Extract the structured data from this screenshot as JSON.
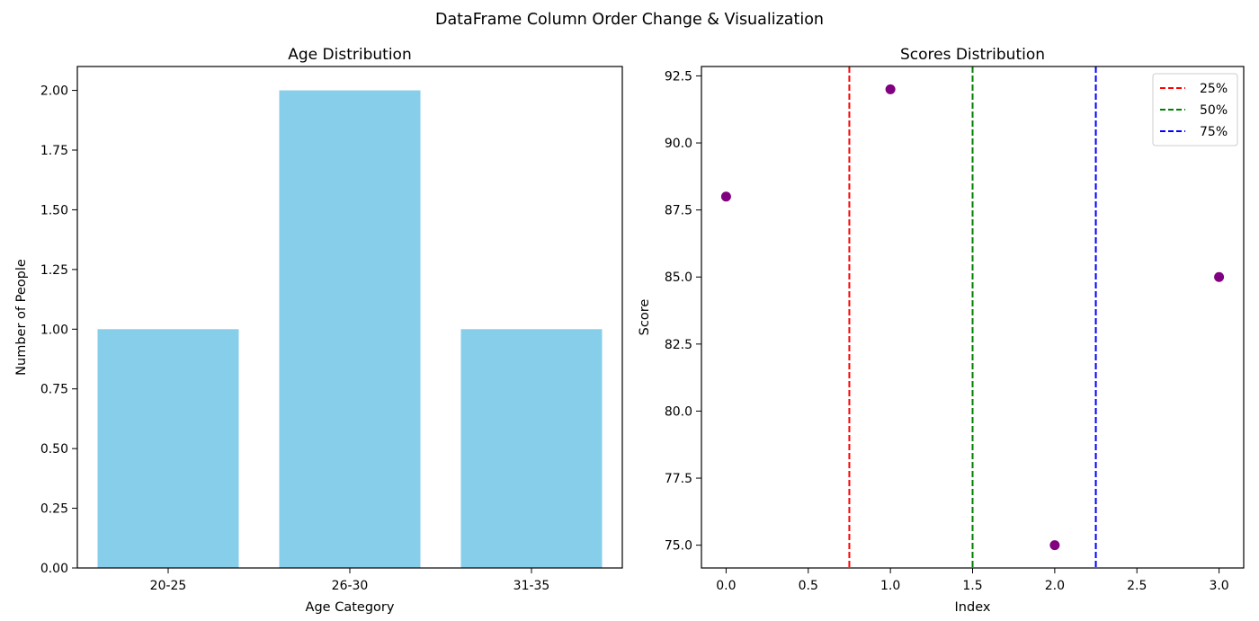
{
  "figure": {
    "suptitle": "DataFrame Column Order Change & Visualization"
  },
  "chart_data": [
    {
      "type": "bar",
      "title": "Age Distribution",
      "xlabel": "Age Category",
      "ylabel": "Number of People",
      "categories": [
        "20-25",
        "26-30",
        "31-35"
      ],
      "values": [
        1,
        2,
        1
      ],
      "ylim": [
        0,
        2.1
      ],
      "yticks": [
        "0.00",
        "0.25",
        "0.50",
        "0.75",
        "1.00",
        "1.25",
        "1.50",
        "1.75",
        "2.00"
      ],
      "bar_color": "#87ceeb",
      "grid": false
    },
    {
      "type": "scatter",
      "title": "Scores Distribution",
      "xlabel": "Index",
      "ylabel": "Score",
      "x": [
        0,
        1,
        2,
        3
      ],
      "y": [
        88,
        92,
        75,
        85
      ],
      "xlim": [
        -0.15,
        3.15
      ],
      "ylim": [
        74.15,
        92.85
      ],
      "xticks": [
        "0.0",
        "0.5",
        "1.0",
        "1.5",
        "2.0",
        "2.5",
        "3.0"
      ],
      "yticks": [
        "75.0",
        "77.5",
        "80.0",
        "82.5",
        "85.0",
        "87.5",
        "90.0",
        "92.5"
      ],
      "point_color": "#800080",
      "vlines": [
        {
          "x": 0.75,
          "label": "25%",
          "color": "#ff0000"
        },
        {
          "x": 1.5,
          "label": "50%",
          "color": "#008000"
        },
        {
          "x": 2.25,
          "label": "75%",
          "color": "#0000ff"
        }
      ],
      "legend_position": "top-right",
      "grid": false
    }
  ]
}
